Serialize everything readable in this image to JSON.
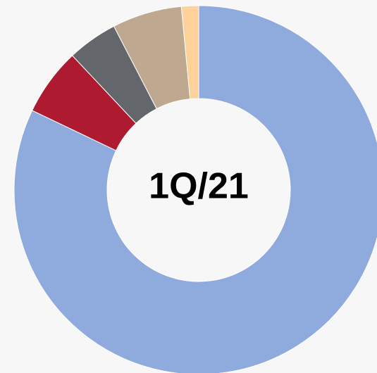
{
  "chart_data": {
    "type": "donut",
    "center_label": "1Q/21",
    "categories": [
      null,
      null,
      null,
      null,
      null
    ],
    "values": [
      82.1,
      5.9,
      4.4,
      6.1,
      1.5
    ],
    "colors": [
      "#8faadc",
      "#ae1a2f",
      "#63666a",
      "#bea88f",
      "#fdd29a"
    ]
  }
}
